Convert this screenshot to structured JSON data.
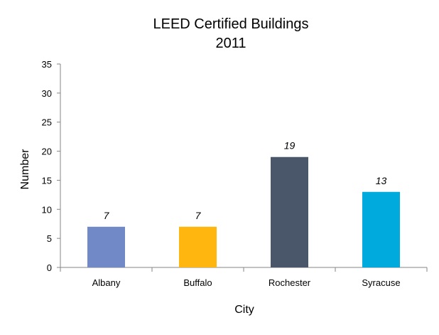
{
  "chart_data": {
    "type": "bar",
    "title": "LEED Certified Buildings",
    "subtitle": "2011",
    "xlabel": "City",
    "ylabel": "Number",
    "categories": [
      "Albany",
      "Buffalo",
      "Rochester",
      "Syracuse"
    ],
    "values": [
      7,
      7,
      19,
      13
    ],
    "data_labels": [
      "7",
      "7",
      "19",
      "13"
    ],
    "colors": [
      "#7189c6",
      "#ffb70f",
      "#4a5669",
      "#00aadd"
    ],
    "ylim": [
      0,
      35
    ],
    "yticks": [
      0,
      5,
      10,
      15,
      20,
      25,
      30,
      35
    ],
    "ytick_labels": [
      "0",
      "5",
      "10",
      "15",
      "20",
      "25",
      "30",
      "35"
    ],
    "grid": false,
    "legend": "none"
  }
}
